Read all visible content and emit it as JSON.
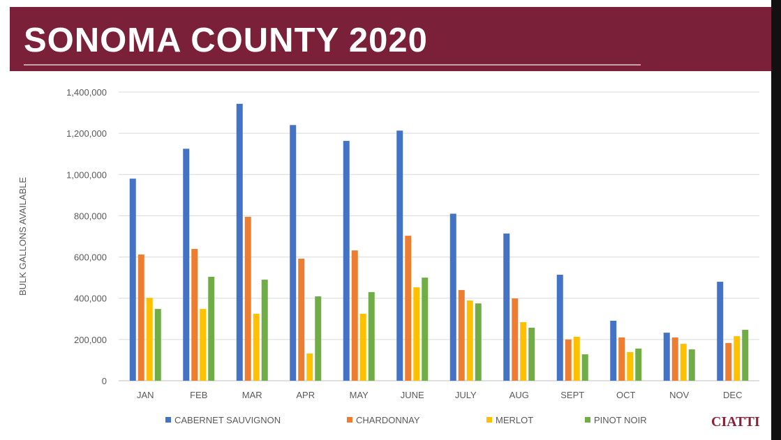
{
  "header": {
    "title": "SONOMA COUNTY 2020"
  },
  "logo": "CIATTI",
  "chart_data": {
    "type": "bar",
    "title": "SONOMA COUNTY 2020",
    "xlabel": "",
    "ylabel": "BULK GALLONS AVAILABLE",
    "ylim": [
      0,
      1400000
    ],
    "yticks": [
      0,
      200000,
      400000,
      600000,
      800000,
      1000000,
      1200000,
      1400000
    ],
    "ytick_labels": [
      "0",
      "200,000",
      "400,000",
      "600,000",
      "800,000",
      "1,000,000",
      "1,200,000",
      "1,400,000"
    ],
    "grid": true,
    "legend": "bottom",
    "categories": [
      "JAN",
      "FEB",
      "MAR",
      "APR",
      "MAY",
      "JUNE",
      "JULY",
      "AUG",
      "SEPT",
      "OCT",
      "NOV",
      "DEC"
    ],
    "series": [
      {
        "name": "CABERNET SAUVIGNON",
        "color": "#4472c4",
        "values": [
          980000,
          1125000,
          1343000,
          1240000,
          1163000,
          1213000,
          810000,
          714000,
          514000,
          291000,
          233000,
          480000
        ]
      },
      {
        "name": "CHARDONNAY",
        "color": "#ed7d31",
        "values": [
          612000,
          639000,
          795000,
          592000,
          632000,
          703000,
          440000,
          399000,
          200000,
          210000,
          210000,
          183000
        ]
      },
      {
        "name": "MERLOT",
        "color": "#ffc000",
        "values": [
          402000,
          348000,
          325000,
          132000,
          325000,
          453000,
          389000,
          284000,
          213000,
          139000,
          179000,
          216000
        ]
      },
      {
        "name": "PINOT NOIR",
        "color": "#70ad47",
        "values": [
          348000,
          504000,
          490000,
          409000,
          430000,
          500000,
          375000,
          257000,
          128000,
          156000,
          152000,
          247000
        ]
      }
    ]
  }
}
